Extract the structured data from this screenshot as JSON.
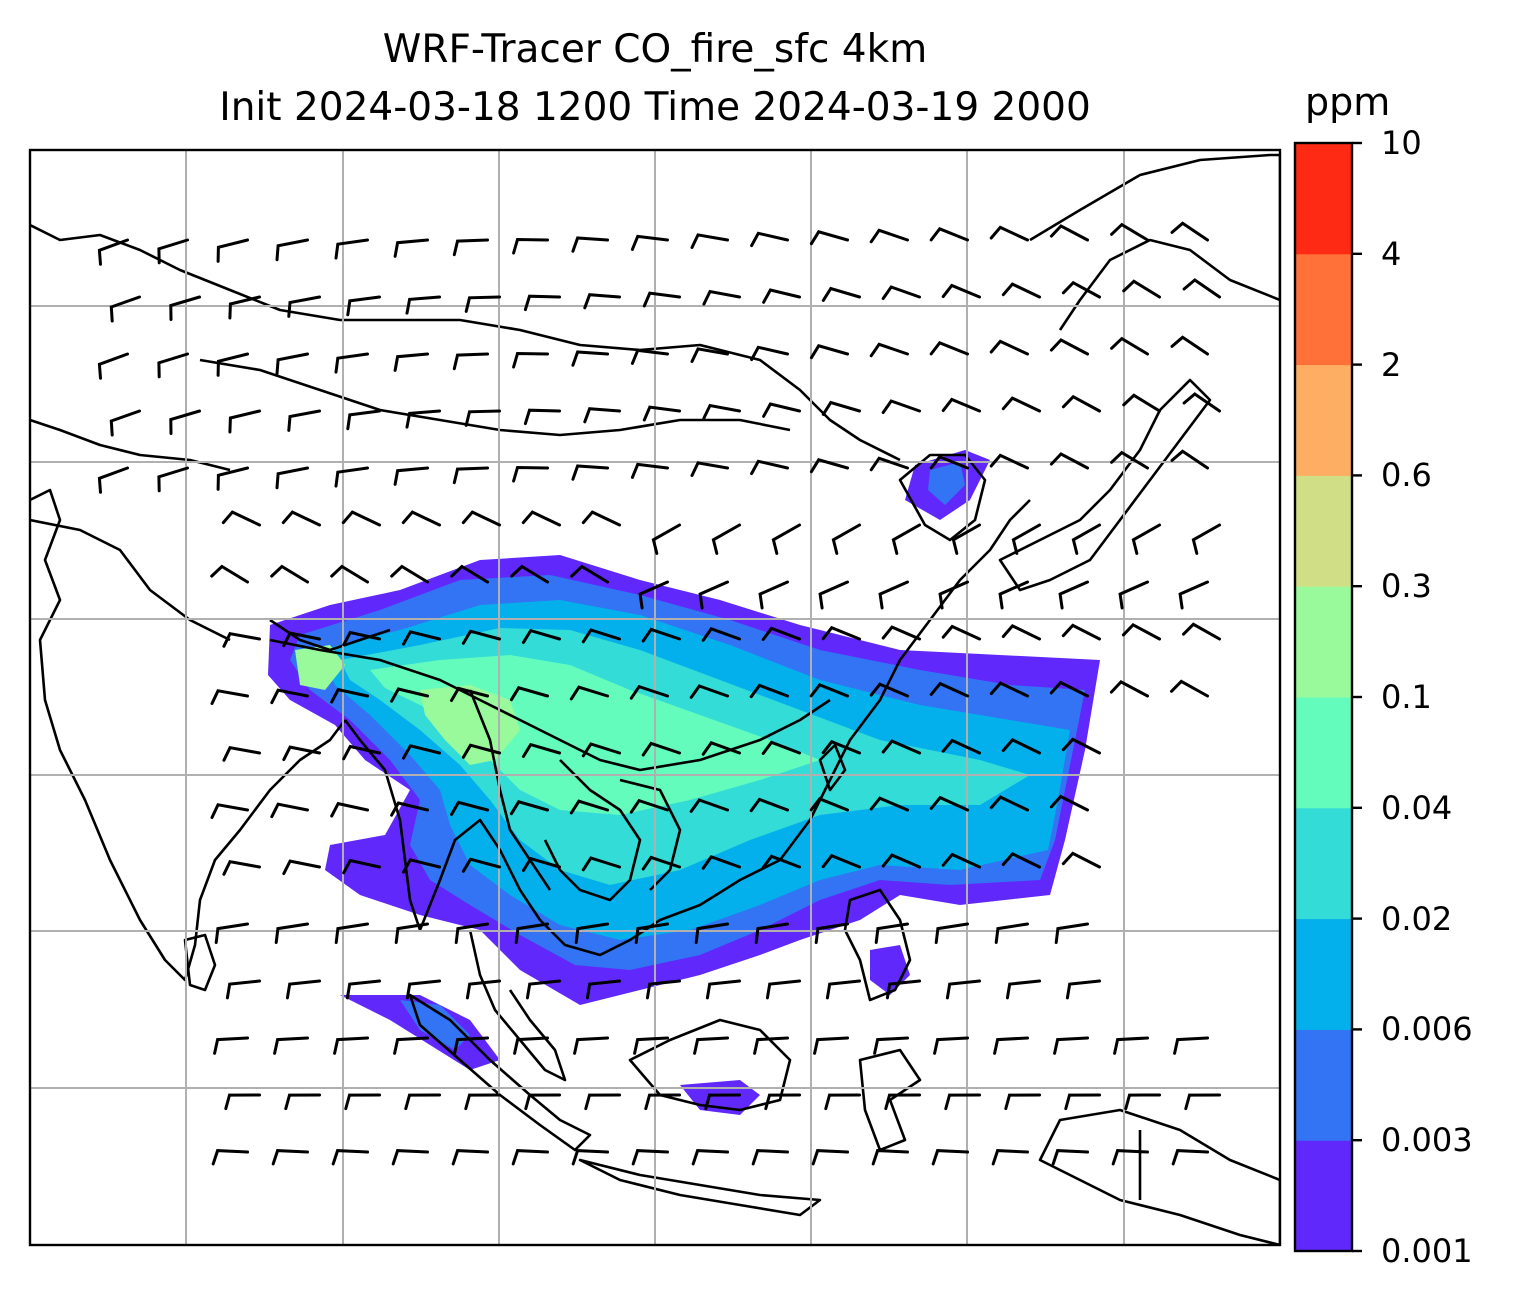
{
  "title": {
    "line1": "WRF-Tracer CO_fire_sfc 4km",
    "line2": "Init 2024-03-18 1200 Time 2024-03-19 2000"
  },
  "colorbar": {
    "unit": "ppm",
    "ticks": [
      "0.001",
      "0.003",
      "0.006",
      "0.02",
      "0.04",
      "0.1",
      "0.3",
      "0.6",
      "2",
      "4",
      "10"
    ],
    "colors": [
      "#6128fb",
      "#3274f3",
      "#03b0ec",
      "#33dcd7",
      "#64fcbc",
      "#98fa9b",
      "#d0df86",
      "#fdae62",
      "#ff7139",
      "#ff2a13"
    ]
  },
  "map": {
    "gridlines": true,
    "coastline_color": "#000000",
    "grid_color": "#b0b0b0"
  }
}
